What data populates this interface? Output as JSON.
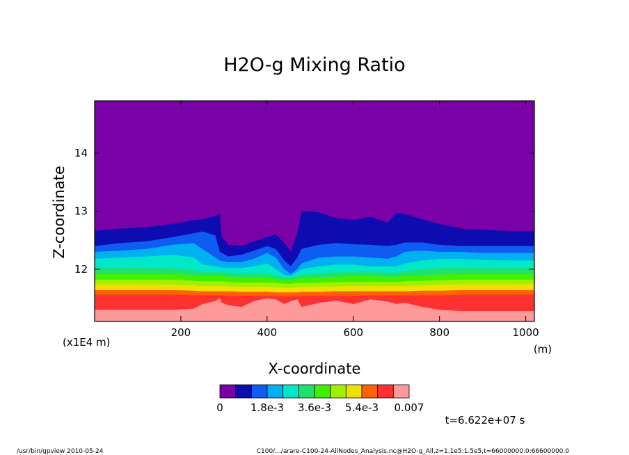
{
  "chart_data": {
    "type": "heatmap",
    "title": "H2O-g Mixing Ratio",
    "xlabel": "X-coordinate",
    "ylabel": "Z-coordinate",
    "x_unit": "(m)",
    "y_unit": "(x1E4 m)",
    "xlim": [
      0,
      1020
    ],
    "ylim": [
      11.1,
      14.9
    ],
    "x_ticks": [
      "200",
      "400",
      "600",
      "800",
      "1000"
    ],
    "x_tick_values": [
      200,
      400,
      600,
      800,
      1000
    ],
    "y_ticks": [
      "12",
      "13",
      "14"
    ],
    "y_tick_values": [
      12,
      13,
      14
    ],
    "colorbar": {
      "colors": [
        "#7a00a8",
        "#0c0cb0",
        "#0f5cf2",
        "#00b0f0",
        "#00e8c8",
        "#20e070",
        "#40f000",
        "#a0f000",
        "#f0e000",
        "#ff6000",
        "#ff3030",
        "#ff9a9a"
      ],
      "labels": [
        "0",
        "1.8e-3",
        "3.6e-3",
        "5.4e-3",
        "0.007"
      ]
    },
    "contour_tops": {
      "x": [
        0,
        60,
        120,
        180,
        230,
        250,
        280,
        290,
        295,
        310,
        340,
        370,
        400,
        420,
        440,
        455,
        470,
        480,
        520,
        560,
        600,
        640,
        680,
        700,
        720,
        760,
        800,
        850,
        900,
        960,
        1020
      ],
      "levels": [
        [
          12.66,
          12.7,
          12.72,
          12.78,
          12.84,
          12.86,
          12.92,
          12.96,
          12.55,
          12.42,
          12.4,
          12.48,
          12.55,
          12.6,
          12.45,
          12.3,
          12.62,
          13.0,
          12.98,
          12.88,
          12.85,
          12.9,
          12.8,
          12.98,
          12.95,
          12.86,
          12.78,
          12.7,
          12.68,
          12.66,
          12.66
        ],
        [
          12.4,
          12.45,
          12.48,
          12.55,
          12.62,
          12.65,
          12.58,
          12.3,
          12.28,
          12.22,
          12.25,
          12.32,
          12.4,
          12.35,
          12.15,
          12.05,
          12.2,
          12.35,
          12.42,
          12.45,
          12.43,
          12.42,
          12.4,
          12.42,
          12.46,
          12.46,
          12.42,
          12.4,
          12.4,
          12.4,
          12.4
        ],
        [
          12.3,
          12.32,
          12.35,
          12.42,
          12.45,
          12.35,
          12.2,
          12.15,
          12.14,
          12.12,
          12.12,
          12.18,
          12.28,
          12.2,
          12.0,
          11.92,
          12.0,
          12.1,
          12.2,
          12.22,
          12.22,
          12.2,
          12.18,
          12.22,
          12.3,
          12.32,
          12.3,
          12.3,
          12.28,
          12.28,
          12.28
        ],
        [
          12.18,
          12.2,
          12.22,
          12.25,
          12.2,
          12.08,
          12.05,
          12.03,
          12.03,
          12.02,
          12.02,
          12.05,
          12.1,
          12.0,
          11.9,
          11.88,
          11.95,
          12.0,
          12.05,
          12.08,
          12.08,
          12.05,
          12.05,
          12.05,
          12.1,
          12.15,
          12.18,
          12.18,
          12.16,
          12.15,
          12.15
        ],
        [
          12.02,
          12.02,
          12.02,
          12.02,
          11.98,
          11.95,
          11.95,
          11.95,
          11.95,
          11.94,
          11.92,
          11.92,
          11.92,
          11.88,
          11.85,
          11.85,
          11.88,
          11.9,
          11.92,
          11.95,
          11.95,
          11.95,
          11.94,
          11.94,
          11.96,
          12.0,
          12.02,
          12.02,
          12.02,
          12.02,
          12.02
        ],
        [
          11.92,
          11.92,
          11.92,
          11.92,
          11.9,
          11.88,
          11.88,
          11.88,
          11.88,
          11.87,
          11.86,
          11.86,
          11.86,
          11.84,
          11.82,
          11.82,
          11.84,
          11.85,
          11.86,
          11.87,
          11.88,
          11.88,
          11.87,
          11.87,
          11.88,
          11.9,
          11.91,
          11.92,
          11.92,
          11.92,
          11.92
        ],
        [
          11.82,
          11.82,
          11.82,
          11.82,
          11.8,
          11.79,
          11.79,
          11.79,
          11.79,
          11.78,
          11.77,
          11.77,
          11.77,
          11.76,
          11.75,
          11.75,
          11.76,
          11.76,
          11.77,
          11.78,
          11.78,
          11.78,
          11.78,
          11.78,
          11.79,
          11.8,
          11.81,
          11.82,
          11.82,
          11.82,
          11.82
        ],
        [
          11.74,
          11.74,
          11.74,
          11.73,
          11.72,
          11.71,
          11.71,
          11.71,
          11.71,
          11.7,
          11.7,
          11.7,
          11.7,
          11.69,
          11.68,
          11.68,
          11.69,
          11.69,
          11.7,
          11.7,
          11.71,
          11.71,
          11.71,
          11.71,
          11.71,
          11.72,
          11.73,
          11.74,
          11.74,
          11.74,
          11.74
        ],
        [
          11.64,
          11.64,
          11.64,
          11.64,
          11.63,
          11.62,
          11.62,
          11.62,
          11.62,
          11.62,
          11.61,
          11.61,
          11.61,
          11.6,
          11.6,
          11.6,
          11.6,
          11.61,
          11.61,
          11.62,
          11.62,
          11.62,
          11.62,
          11.62,
          11.62,
          11.63,
          11.63,
          11.64,
          11.64,
          11.64,
          11.64
        ],
        [
          11.56,
          11.56,
          11.56,
          11.56,
          11.55,
          11.55,
          11.55,
          11.55,
          11.55,
          11.54,
          11.54,
          11.54,
          11.54,
          11.54,
          11.53,
          11.53,
          11.53,
          11.54,
          11.54,
          11.54,
          11.54,
          11.55,
          11.55,
          11.55,
          11.55,
          11.55,
          11.55,
          11.56,
          11.56,
          11.56,
          11.56
        ],
        [
          11.3,
          11.3,
          11.3,
          11.3,
          11.32,
          11.4,
          11.45,
          11.5,
          11.42,
          11.38,
          11.35,
          11.45,
          11.5,
          11.48,
          11.4,
          11.45,
          11.48,
          11.35,
          11.42,
          11.46,
          11.4,
          11.48,
          11.44,
          11.4,
          11.42,
          11.35,
          11.3,
          11.28,
          11.28,
          11.28,
          11.28
        ]
      ]
    },
    "time_label": "t=6.622e+07 s"
  },
  "footer": {
    "left": "/usr/bin/gpview  2010-05-24",
    "right": "C100/.../arare-C100-24-AllNodes_Analysis.nc@H2O-g_All,z=1.1e5:1.5e5,t=66000000.0:66600000.0"
  }
}
